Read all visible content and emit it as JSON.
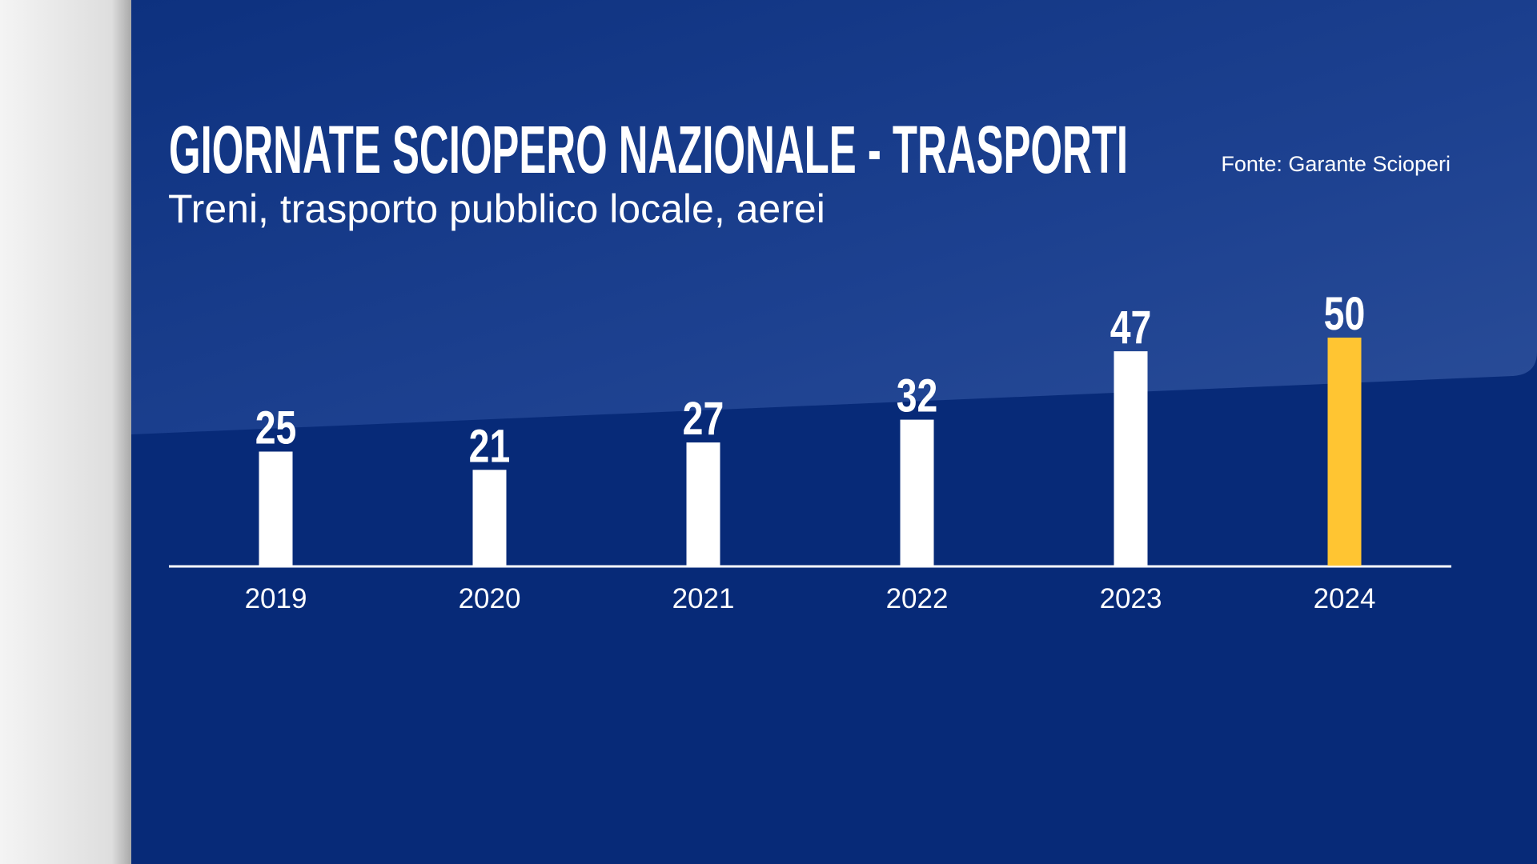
{
  "chart_data": {
    "type": "bar",
    "title": "GIORNATE SCIOPERO NAZIONALE - TRASPORTI",
    "subtitle": "Treni, trasporto pubblico locale, aerei",
    "source": "Fonte: Garante Scioperi",
    "categories": [
      "2019",
      "2020",
      "2021",
      "2022",
      "2023",
      "2024"
    ],
    "values": [
      25,
      21,
      27,
      32,
      47,
      50
    ],
    "colors": [
      "#ffffff",
      "#ffffff",
      "#ffffff",
      "#ffffff",
      "#ffffff",
      "#ffc532"
    ]
  }
}
